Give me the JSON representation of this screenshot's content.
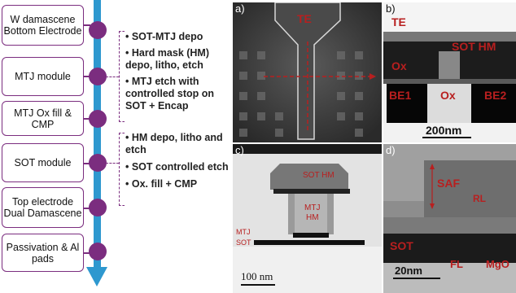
{
  "flow": {
    "boxes": [
      "W damascene Bottom Electrode",
      "MTJ module",
      "MTJ Ox fill & CMP",
      "SOT module",
      "Top electrode Dual Damascene",
      "Passivation & Al pads"
    ],
    "mtj_steps": [
      "• SOT-MTJ depo",
      "• Hard mask (HM) depo, litho, etch",
      "• MTJ etch with controlled stop on SOT + Encap"
    ],
    "sot_steps": [
      "• HM depo, litho and etch",
      "• SOT controlled etch",
      "• Ox. fill + CMP"
    ]
  },
  "panels": {
    "a": {
      "label": "a)",
      "te": "TE"
    },
    "b": {
      "label": "b)",
      "te": "TE",
      "sot_hm": "SOT HM",
      "ox_top": "Ox",
      "be1": "BE1",
      "ox_mid": "Ox",
      "be2": "BE2",
      "scale": "200nm"
    },
    "c": {
      "label": "c)",
      "sot_hm": "SOT HM",
      "mtj_hm_1": "MTJ",
      "mtj_hm_2": "HM",
      "mtj": "MTJ",
      "sot": "SOT",
      "scale": "100 nm"
    },
    "d": {
      "label": "d)",
      "saf": "SAF",
      "rl": "RL",
      "sot": "SOT",
      "fl": "FL",
      "mgo": "MgO",
      "scale": "20nm"
    }
  },
  "colors": {
    "purple": "#7b2d7f",
    "arrow_blue": "#2e98cf",
    "annotation_red": "#b81f1f"
  }
}
